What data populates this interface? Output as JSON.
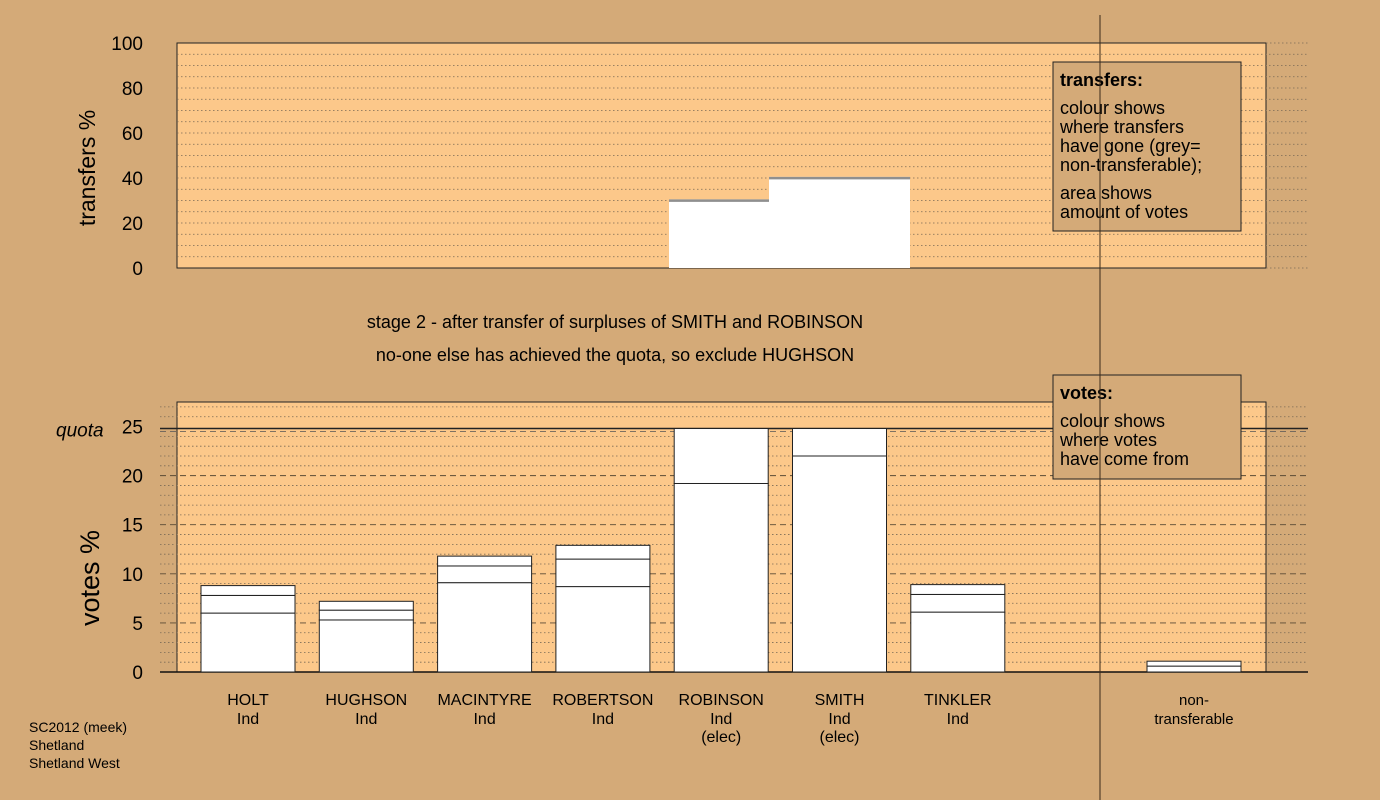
{
  "colors": {
    "background": "#d4aa78",
    "plot_fill": "#fcc88a",
    "bar_fill": "#ffffff",
    "grey": "#999999"
  },
  "stage_title": "stage 2 - after transfer of surpluses of SMITH and ROBINSON",
  "stage_note": "no-one else has achieved the quota, so exclude HUGHSON",
  "footer": [
    "SC2012 (meek)",
    "Shetland",
    "Shetland West"
  ],
  "chart_data": [
    {
      "type": "bar",
      "ylabel": "transfers %",
      "ylim": [
        0,
        100
      ],
      "yticks": [
        0,
        20,
        40,
        60,
        80,
        100
      ],
      "grid": "dotted",
      "legend": {
        "title": "transfers:",
        "lines": [
          "colour shows",
          "where transfers",
          "have gone (grey=",
          "non-transferable);",
          "area shows",
          "amount of votes"
        ]
      },
      "transfer_blocks": [
        {
          "from": "ROBINSON",
          "value": 30.5
        },
        {
          "from": "SMITH",
          "value": 40.5
        }
      ]
    },
    {
      "type": "bar",
      "ylabel": "votes %",
      "ylim": [
        0,
        27.5
      ],
      "yticks": [
        0,
        5,
        10,
        15,
        20,
        25
      ],
      "quota": 24.8,
      "quota_label": "quota",
      "grid": "dashed",
      "legend": {
        "title": "votes:",
        "lines": [
          "colour shows",
          "where votes",
          "have come from"
        ]
      },
      "categories": [
        {
          "name": "HOLT",
          "party": "Ind",
          "note": ""
        },
        {
          "name": "HUGHSON",
          "party": "Ind",
          "note": ""
        },
        {
          "name": "MACINTYRE",
          "party": "Ind",
          "note": ""
        },
        {
          "name": "ROBERTSON",
          "party": "Ind",
          "note": ""
        },
        {
          "name": "ROBINSON",
          "party": "Ind",
          "note": "(elec)"
        },
        {
          "name": "SMITH",
          "party": "Ind",
          "note": "(elec)"
        },
        {
          "name": "TINKLER",
          "party": "Ind",
          "note": ""
        }
      ],
      "segments": [
        [
          6.0,
          1.8,
          1.0
        ],
        [
          5.3,
          1.0,
          0.9
        ],
        [
          9.1,
          1.7,
          1.0
        ],
        [
          8.7,
          2.8,
          1.4
        ],
        [
          19.2,
          5.6
        ],
        [
          22.0,
          2.8
        ],
        [
          6.1,
          1.8,
          1.0
        ]
      ],
      "nontransferable": {
        "label_line1": "non-",
        "label_line2": "transferable",
        "segments": [
          0.6,
          0.5
        ]
      }
    }
  ]
}
